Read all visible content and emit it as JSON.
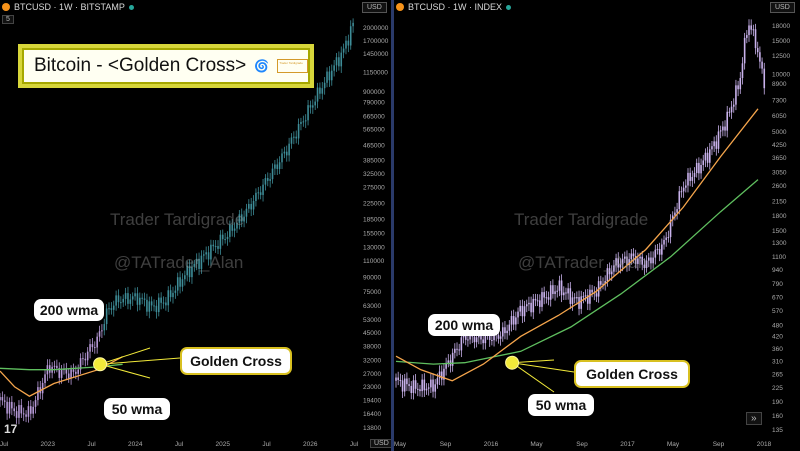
{
  "left": {
    "header": "BTCUSD · 1W · BITSTAMP",
    "usd_button": "USD",
    "interval_button": "5",
    "title": "Bitcoin - <Golden Cross>",
    "logo_card_text": "Trader Tardigrade",
    "watermark1": "Trader Tardigrade",
    "watermark2": "@TATrader_Alan",
    "bubble_200": "200 wma",
    "bubble_50": "50 wma",
    "bubble_gc": "Golden Cross",
    "tv_logo": "17",
    "footer_button": "USD"
  },
  "right": {
    "header": "BTCUSD · 1W · INDEX",
    "usd_button": "USD",
    "watermark1": "Trader Tardigrade",
    "watermark2": "@TATrader_Alan",
    "bubble_200": "200 wma",
    "bubble_50": "50 wma",
    "bubble_gc": "Golden Cross",
    "expand_button": "»"
  },
  "colors": {
    "wma200": "#5fbf5f",
    "wma50": "#f5a54c",
    "candles_left_early": "#b79ad8",
    "candles_left_late": "#3e8d98",
    "candles_right": "#c9b2ec",
    "golden_dot": "#f2ea3a"
  },
  "chart_data": [
    {
      "type": "line",
      "y_scale": "log",
      "x_ticks": [
        "Jul",
        "2023",
        "Jul",
        "2024",
        "Jul",
        "2025",
        "Jul",
        "2026",
        "Jul"
      ],
      "y_ticks": [
        2000000,
        1700000,
        1450000,
        1150000,
        900000,
        790000,
        665000,
        565000,
        465000,
        385000,
        325000,
        275000,
        225000,
        185000,
        155000,
        130000,
        110000,
        90000,
        75000,
        63000,
        53000,
        45000,
        38000,
        32000,
        27000,
        23000,
        19400,
        16400,
        13800
      ],
      "series": [
        {
          "name": "200 wma",
          "values": [
            [
              0,
              29000
            ],
            [
              0.3,
              28500
            ],
            [
              0.55,
              28500
            ],
            [
              1.0,
              29500
            ],
            [
              1.25,
              30500
            ]
          ]
        },
        {
          "name": "50 wma",
          "values": [
            [
              0,
              28000
            ],
            [
              0.15,
              23000
            ],
            [
              0.3,
              20500
            ],
            [
              0.55,
              24000
            ],
            [
              1.0,
              28500
            ],
            [
              1.25,
              33500
            ]
          ]
        }
      ],
      "price_path": [
        [
          0,
          19500
        ],
        [
          0.15,
          17000
        ],
        [
          0.3,
          16500
        ],
        [
          0.4,
          22000
        ],
        [
          0.5,
          30000
        ],
        [
          0.6,
          28000
        ],
        [
          0.75,
          27000
        ],
        [
          0.9,
          36000
        ],
        [
          1.0,
          42000
        ],
        [
          1.1,
          60000
        ],
        [
          1.2,
          68000
        ],
        [
          1.4,
          70000
        ],
        [
          1.55,
          62000
        ],
        [
          1.7,
          68000
        ],
        [
          1.9,
          95000
        ],
        [
          2.1,
          120000
        ],
        [
          2.3,
          150000
        ],
        [
          2.5,
          200000
        ],
        [
          2.7,
          290000
        ],
        [
          2.9,
          420000
        ],
        [
          3.1,
          650000
        ],
        [
          3.3,
          1000000
        ],
        [
          3.5,
          1500000
        ],
        [
          3.6,
          2100000
        ]
      ],
      "annotations": [
        "200 wma",
        "50 wma",
        "Golden Cross"
      ]
    },
    {
      "type": "line",
      "y_scale": "log",
      "x_ticks": [
        "May",
        "Sep",
        "2016",
        "May",
        "Sep",
        "2017",
        "May",
        "Sep",
        "2018"
      ],
      "y_ticks": [
        18000,
        15000,
        12500,
        10000,
        8900,
        7300,
        6050,
        5000,
        4250,
        3650,
        3050,
        2600,
        2150,
        1800,
        1500,
        1300,
        1100,
        940,
        790,
        670,
        570,
        480,
        420,
        360,
        310,
        265,
        225,
        190,
        160,
        135
      ],
      "series": [
        {
          "name": "200 wma",
          "values": [
            [
              0,
              310
            ],
            [
              0.3,
              300
            ],
            [
              0.55,
              305
            ],
            [
              1.0,
              350
            ],
            [
              1.4,
              470
            ],
            [
              1.8,
              700
            ],
            [
              2.2,
              1100
            ],
            [
              2.6,
              1900
            ],
            [
              2.9,
              2800
            ]
          ]
        },
        {
          "name": "50 wma",
          "values": [
            [
              0,
              330
            ],
            [
              0.2,
              280
            ],
            [
              0.45,
              245
            ],
            [
              0.7,
              300
            ],
            [
              1.0,
              420
            ],
            [
              1.3,
              540
            ],
            [
              1.6,
              720
            ],
            [
              2.0,
              1200
            ],
            [
              2.3,
              2000
            ],
            [
              2.6,
              3700
            ],
            [
              2.9,
              6600
            ]
          ]
        }
      ],
      "price_path": [
        [
          0,
          245
        ],
        [
          0.15,
          225
        ],
        [
          0.3,
          230
        ],
        [
          0.45,
          330
        ],
        [
          0.55,
          420
        ],
        [
          0.7,
          410
        ],
        [
          0.85,
          430
        ],
        [
          1.0,
          580
        ],
        [
          1.2,
          680
        ],
        [
          1.3,
          760
        ],
        [
          1.45,
          640
        ],
        [
          1.6,
          720
        ],
        [
          1.75,
          1000
        ],
        [
          1.9,
          1100
        ],
        [
          2.0,
          1000
        ],
        [
          2.15,
          1300
        ],
        [
          2.3,
          2600
        ],
        [
          2.45,
          3400
        ],
        [
          2.55,
          4300
        ],
        [
          2.65,
          5800
        ],
        [
          2.75,
          9000
        ],
        [
          2.82,
          19000
        ],
        [
          2.88,
          15000
        ],
        [
          2.92,
          11000
        ],
        [
          2.95,
          9300
        ]
      ],
      "annotations": [
        "200 wma",
        "50 wma",
        "Golden Cross"
      ]
    }
  ]
}
